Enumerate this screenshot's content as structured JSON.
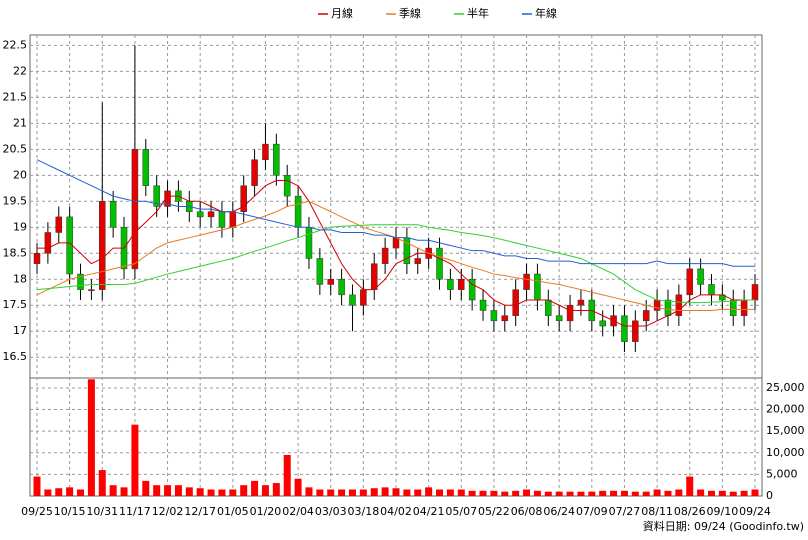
{
  "chart_data": [
    {
      "type": "candlestick",
      "categories": [
        "09/25",
        null,
        null,
        "10/15",
        null,
        null,
        "10/31",
        null,
        null,
        "11/17",
        null,
        null,
        "12/02",
        null,
        null,
        "12/17",
        null,
        null,
        "01/05",
        null,
        null,
        "01/20",
        null,
        null,
        "02/04",
        null,
        null,
        "03/03",
        null,
        null,
        "03/18",
        null,
        null,
        "04/02",
        null,
        null,
        "04/21",
        null,
        null,
        "05/07",
        null,
        null,
        "05/22",
        null,
        null,
        "06/08",
        null,
        null,
        "06/24",
        null,
        null,
        "07/09",
        null,
        null,
        "07/27",
        null,
        null,
        "08/11",
        null,
        null,
        "08/26",
        null,
        null,
        "09/10",
        null,
        null,
        "09/24"
      ],
      "open": [
        18.3,
        18.5,
        18.9,
        19.2,
        18.1,
        17.8,
        17.8,
        19.5,
        19.0,
        18.2,
        20.5,
        19.8,
        19.4,
        19.7,
        19.5,
        19.3,
        19.2,
        19.3,
        19.0,
        19.3,
        19.8,
        20.3,
        20.6,
        20.0,
        19.6,
        19.0,
        18.4,
        17.9,
        18.0,
        17.7,
        17.5,
        17.8,
        18.3,
        18.6,
        18.8,
        18.3,
        18.4,
        18.6,
        18.0,
        17.8,
        18.0,
        17.6,
        17.4,
        17.2,
        17.3,
        17.8,
        18.1,
        17.6,
        17.3,
        17.2,
        17.5,
        17.6,
        17.2,
        17.1,
        17.3,
        16.8,
        17.2,
        17.4,
        17.6,
        17.3,
        17.7,
        18.2,
        17.9,
        17.7,
        17.6,
        17.3,
        17.6
      ],
      "high": [
        18.7,
        19.1,
        19.4,
        19.4,
        18.3,
        18.0,
        21.4,
        19.7,
        19.2,
        22.5,
        20.7,
        20.0,
        19.9,
        19.9,
        19.7,
        19.5,
        19.5,
        19.5,
        19.5,
        20.0,
        20.5,
        21.0,
        20.8,
        20.2,
        19.8,
        19.2,
        18.6,
        18.2,
        18.2,
        17.9,
        18.0,
        18.5,
        18.8,
        19.0,
        19.0,
        18.6,
        18.8,
        18.8,
        18.2,
        18.2,
        18.2,
        17.8,
        17.6,
        17.5,
        18.0,
        18.3,
        18.3,
        17.8,
        17.5,
        17.7,
        17.8,
        17.8,
        17.4,
        17.5,
        17.5,
        17.4,
        17.6,
        17.8,
        17.8,
        17.9,
        18.4,
        18.4,
        18.1,
        17.9,
        17.8,
        17.8,
        18.1
      ],
      "low": [
        18.1,
        18.3,
        18.7,
        17.9,
        17.6,
        17.6,
        17.6,
        18.8,
        18.0,
        18.0,
        19.6,
        19.2,
        19.2,
        19.3,
        19.1,
        19.0,
        19.0,
        18.8,
        18.8,
        19.1,
        19.6,
        20.1,
        19.8,
        19.4,
        18.8,
        18.2,
        17.7,
        17.7,
        17.5,
        17.0,
        17.3,
        17.6,
        18.1,
        18.4,
        18.1,
        18.1,
        18.2,
        17.8,
        17.6,
        17.6,
        17.4,
        17.2,
        17.0,
        17.0,
        17.1,
        17.6,
        17.4,
        17.1,
        17.0,
        17.0,
        17.3,
        17.0,
        16.9,
        16.9,
        16.6,
        16.6,
        17.0,
        17.2,
        17.1,
        17.1,
        17.5,
        17.7,
        17.5,
        17.4,
        17.1,
        17.1,
        17.4
      ],
      "close": [
        18.5,
        18.9,
        19.2,
        18.1,
        17.8,
        17.8,
        19.5,
        19.0,
        18.2,
        20.5,
        19.8,
        19.4,
        19.7,
        19.5,
        19.3,
        19.2,
        19.3,
        19.0,
        19.3,
        19.8,
        20.3,
        20.6,
        20.0,
        19.6,
        19.0,
        18.4,
        17.9,
        18.0,
        17.7,
        17.5,
        17.8,
        18.3,
        18.6,
        18.8,
        18.3,
        18.4,
        18.6,
        18.0,
        17.8,
        18.0,
        17.6,
        17.4,
        17.2,
        17.3,
        17.8,
        18.1,
        17.6,
        17.3,
        17.2,
        17.5,
        17.6,
        17.2,
        17.1,
        17.3,
        16.8,
        17.2,
        17.4,
        17.6,
        17.3,
        17.7,
        18.2,
        17.9,
        17.7,
        17.6,
        17.3,
        17.6,
        17.9
      ],
      "up_color": "#e60000",
      "down_color": "#00c000",
      "series": [
        {
          "name": "月線",
          "color": "#d00000",
          "values": [
            18.6,
            18.6,
            18.7,
            18.7,
            18.5,
            18.3,
            18.4,
            18.6,
            18.6,
            18.9,
            19.1,
            19.3,
            19.6,
            19.6,
            19.5,
            19.5,
            19.4,
            19.3,
            19.3,
            19.4,
            19.6,
            19.8,
            19.9,
            19.9,
            19.8,
            19.5,
            19.1,
            18.7,
            18.3,
            18.0,
            17.8,
            17.8,
            18.0,
            18.3,
            18.4,
            18.5,
            18.5,
            18.4,
            18.3,
            18.1,
            17.9,
            17.8,
            17.6,
            17.5,
            17.5,
            17.6,
            17.6,
            17.6,
            17.5,
            17.4,
            17.4,
            17.4,
            17.3,
            17.2,
            17.1,
            17.1,
            17.1,
            17.2,
            17.3,
            17.4,
            17.6,
            17.7,
            17.7,
            17.7,
            17.6,
            17.6,
            17.6
          ]
        },
        {
          "name": "季線",
          "color": "#e87a20",
          "values": [
            17.7,
            17.8,
            17.9,
            18.0,
            18.05,
            18.1,
            18.15,
            18.2,
            18.25,
            18.3,
            18.45,
            18.6,
            18.7,
            18.75,
            18.8,
            18.85,
            18.9,
            18.95,
            19.0,
            19.08,
            19.15,
            19.22,
            19.3,
            19.4,
            19.45,
            19.5,
            19.4,
            19.3,
            19.2,
            19.1,
            19.0,
            18.93,
            18.87,
            18.8,
            18.7,
            18.6,
            18.5,
            18.43,
            18.37,
            18.3,
            18.23,
            18.17,
            18.1,
            18.07,
            18.03,
            18.0,
            17.97,
            17.93,
            17.9,
            17.85,
            17.8,
            17.75,
            17.7,
            17.65,
            17.6,
            17.55,
            17.5,
            17.45,
            17.42,
            17.4,
            17.4,
            17.4,
            17.4,
            17.42,
            17.42,
            17.42,
            17.42
          ]
        },
        {
          "name": "半年",
          "color": "#30d030",
          "values": [
            17.8,
            17.82,
            17.84,
            17.86,
            17.88,
            17.9,
            17.9,
            17.9,
            17.9,
            17.92,
            17.98,
            18.04,
            18.1,
            18.15,
            18.2,
            18.25,
            18.3,
            18.35,
            18.4,
            18.47,
            18.54,
            18.6,
            18.67,
            18.74,
            18.8,
            18.87,
            18.94,
            19.0,
            19.02,
            19.03,
            19.04,
            19.05,
            19.05,
            19.05,
            19.05,
            19.05,
            19.0,
            18.97,
            18.94,
            18.9,
            18.87,
            18.84,
            18.8,
            18.75,
            18.7,
            18.65,
            18.6,
            18.55,
            18.5,
            18.45,
            18.4,
            18.3,
            18.2,
            18.1,
            17.95,
            17.8,
            17.7,
            17.6,
            17.58,
            17.56,
            17.55,
            17.55,
            17.56,
            17.57,
            17.58,
            17.6,
            17.6
          ]
        },
        {
          "name": "年線",
          "color": "#2060d0",
          "values": [
            20.3,
            20.2,
            20.1,
            20.0,
            19.9,
            19.8,
            19.7,
            19.6,
            19.55,
            19.5,
            19.5,
            19.45,
            19.45,
            19.4,
            19.4,
            19.35,
            19.35,
            19.3,
            19.3,
            19.25,
            19.2,
            19.15,
            19.1,
            19.05,
            19.0,
            19.0,
            18.95,
            18.95,
            18.9,
            18.9,
            18.9,
            18.85,
            18.85,
            18.8,
            18.8,
            18.75,
            18.75,
            18.7,
            18.65,
            18.6,
            18.55,
            18.55,
            18.5,
            18.45,
            18.45,
            18.4,
            18.4,
            18.35,
            18.35,
            18.35,
            18.3,
            18.3,
            18.3,
            18.3,
            18.3,
            18.3,
            18.3,
            18.35,
            18.3,
            18.3,
            18.3,
            18.3,
            18.3,
            18.3,
            18.25,
            18.25,
            18.25
          ]
        }
      ],
      "ylim": [
        16.1,
        22.7
      ],
      "yticks": [
        16.5,
        17,
        17.5,
        18,
        18.5,
        19,
        19.5,
        20,
        20.5,
        21,
        21.5,
        22,
        22.5
      ],
      "grid": true
    },
    {
      "type": "bar",
      "color": "#ff0000",
      "values": [
        4500,
        1500,
        1800,
        2000,
        1500,
        27000,
        6000,
        2500,
        2000,
        16500,
        3500,
        2500,
        2500,
        2500,
        2000,
        1800,
        1500,
        1500,
        1500,
        2500,
        3500,
        2500,
        3000,
        9500,
        4000,
        2000,
        1500,
        1500,
        1500,
        1500,
        1500,
        1800,
        2000,
        1800,
        1500,
        1500,
        2000,
        1500,
        1500,
        1500,
        1200,
        1200,
        1200,
        1000,
        1200,
        1500,
        1200,
        1000,
        1000,
        1000,
        1000,
        1000,
        1200,
        1200,
        1200,
        1000,
        1000,
        1500,
        1200,
        1500,
        4500,
        1500,
        1200,
        1200,
        1000,
        1200,
        1500
      ],
      "ylim": [
        0,
        27300
      ],
      "yticks": [
        0,
        {
          "value": 5000,
          "label": "5,000"
        },
        {
          "value": 10000,
          "label": "10,000"
        },
        {
          "value": 15000,
          "label": "15,000"
        },
        {
          "value": 20000,
          "label": "20,000"
        },
        {
          "value": 25000,
          "label": "25,000"
        }
      ],
      "grid": true
    }
  ],
  "footer": "資料日期: 09/24 (Goodinfo.tw)"
}
